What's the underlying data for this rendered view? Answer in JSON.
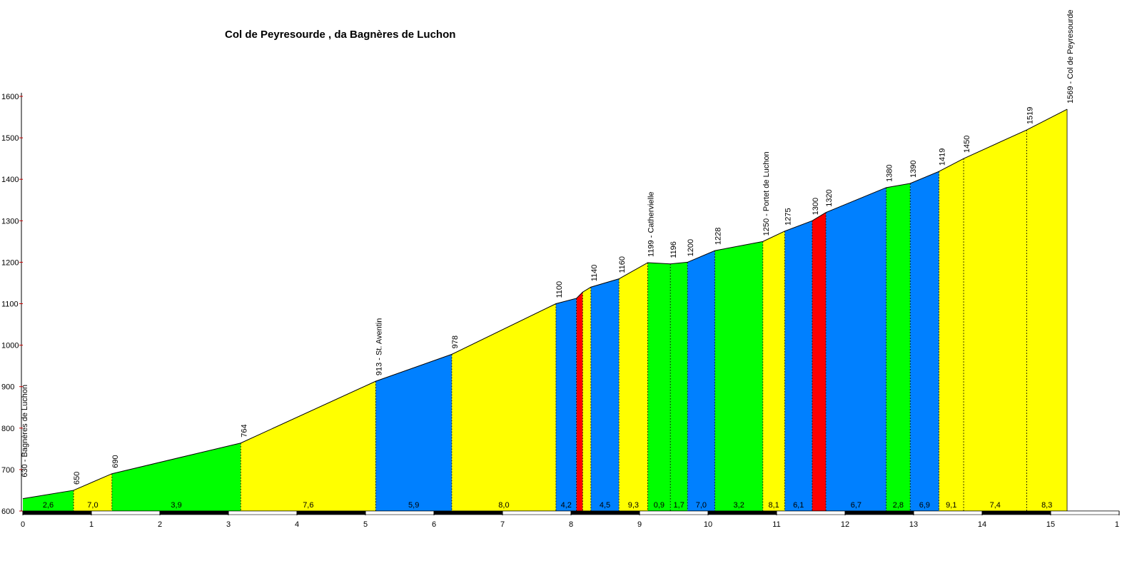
{
  "chart_data": {
    "type": "area",
    "title": "Col de Peyresourde , da Bagnères de Luchon",
    "x": [
      0,
      0.74,
      1.3,
      3.18,
      5.15,
      6.26,
      7.78,
      8.08,
      8.17,
      8.29,
      8.7,
      9.12,
      9.45,
      9.7,
      10.1,
      10.8,
      11.12,
      11.52,
      11.72,
      12.6,
      12.95,
      13.37,
      13.73,
      14.65,
      15.24
    ],
    "values": [
      630,
      650,
      690,
      764,
      913,
      978,
      1100,
      1113,
      1128,
      1140,
      1160,
      1199,
      1196,
      1200,
      1228,
      1250,
      1275,
      1300,
      1320,
      1380,
      1390,
      1419,
      1450,
      1519,
      1569
    ],
    "value_labels": [
      "630 - Bagnères de Luchon",
      "650",
      "690",
      "764",
      "913 - St. Aventin",
      "978",
      "1100",
      null,
      null,
      "1140",
      "1160",
      "1199 - Cathervielle",
      "1196",
      "1200",
      "1228",
      "1250 - Portet de Luchon",
      "1275",
      "1300",
      "1320",
      "1380",
      "1390",
      "1419",
      "1450",
      "1519",
      "1569 - Col de Peyresourde"
    ],
    "segment_labels": [
      "2,6",
      "7,0",
      "3,9",
      "7,6",
      "5,9",
      "8,0",
      "4,2",
      null,
      null,
      "4,5",
      "9,3",
      "0,9",
      "1,7",
      "7,0",
      "3,2",
      "8,1",
      "6,1",
      null,
      "6,7",
      "2,8",
      "6,9",
      "9,1",
      "7,4",
      "8,3"
    ],
    "segment_colors": [
      "#00ff00",
      "#ffff00",
      "#00ff00",
      "#ffff00",
      "#0080ff",
      "#ffff00",
      "#0080ff",
      "#ff0000",
      "#ffff00",
      "#0080ff",
      "#ffff00",
      "#00ff00",
      "#00ff00",
      "#0080ff",
      "#00ff00",
      "#ffff00",
      "#0080ff",
      "#ff0000",
      "#0080ff",
      "#00ff00",
      "#0080ff",
      "#ffff00",
      "#ffff00",
      "#ffff00"
    ],
    "xlim": [
      0,
      16
    ],
    "xticks": [
      0,
      1,
      2,
      3,
      4,
      5,
      6,
      7,
      8,
      9,
      10,
      11,
      12,
      13,
      14,
      15,
      {
        "value": 16,
        "label": "1"
      }
    ],
    "ylim": [
      600,
      1600
    ],
    "yticks": [
      600,
      700,
      800,
      900,
      1000,
      1100,
      1200,
      1300,
      1400,
      1500,
      1600
    ]
  }
}
